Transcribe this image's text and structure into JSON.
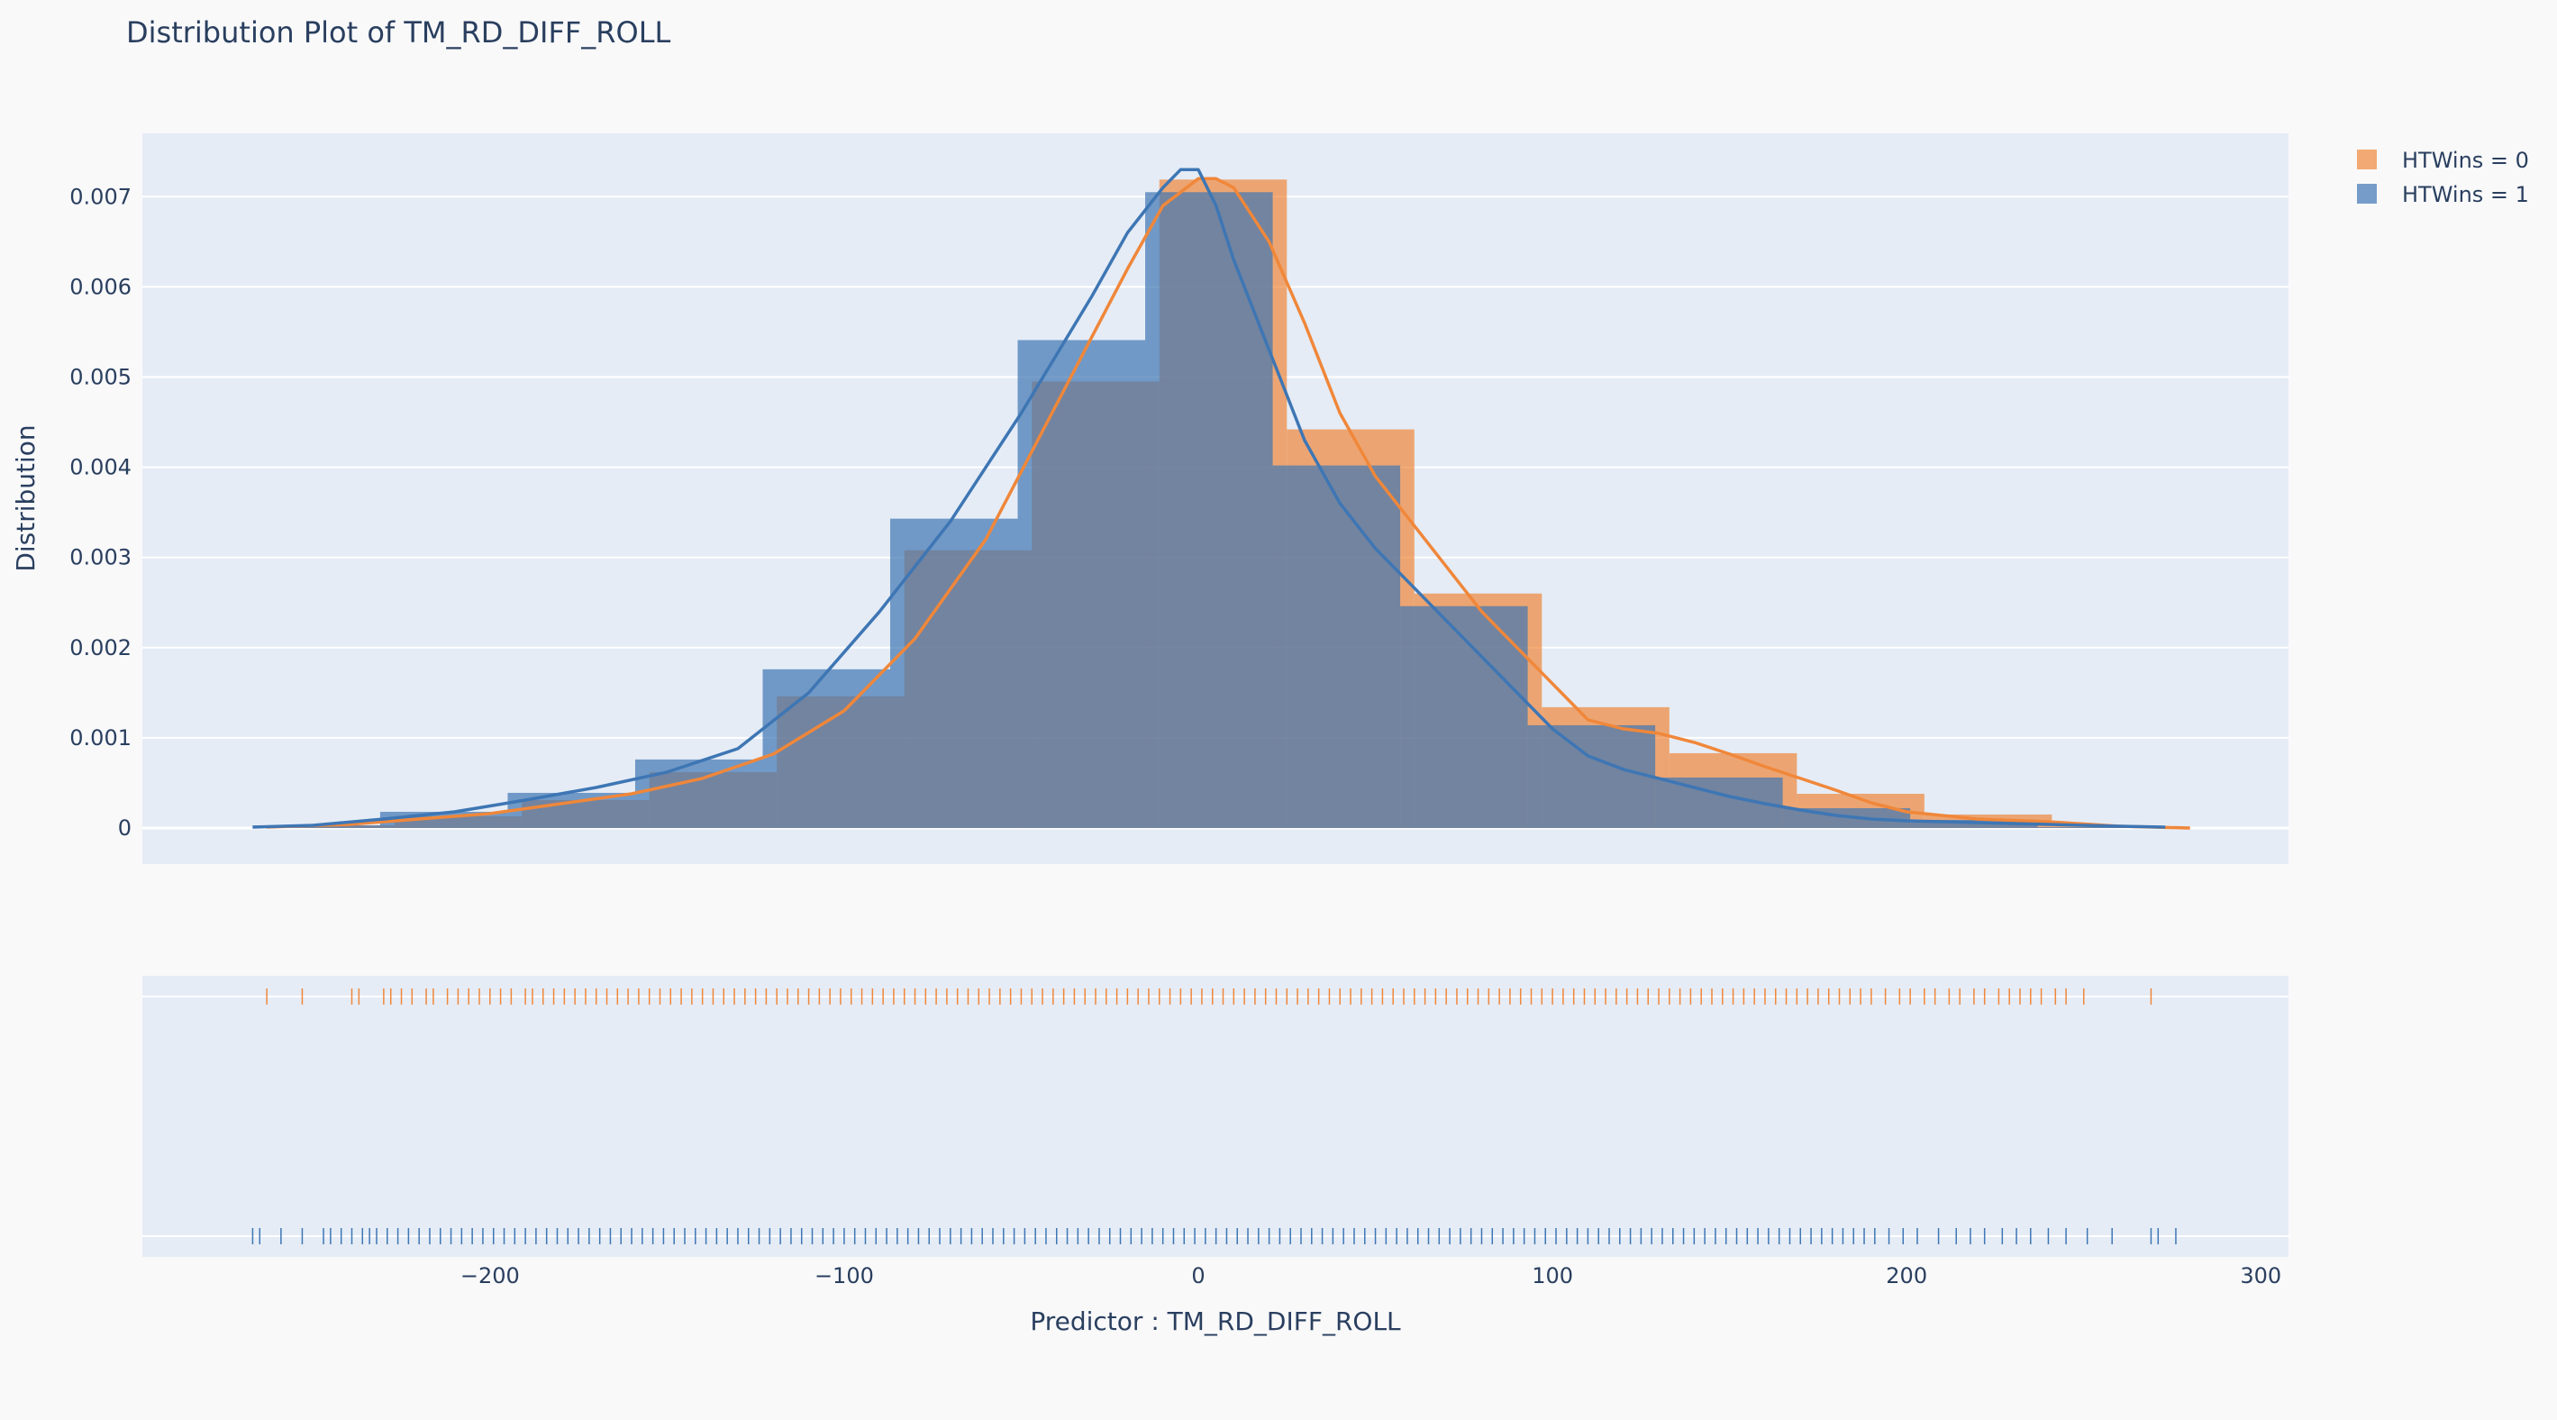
{
  "chart_data": {
    "type": "histogram",
    "title": "Distribution Plot of TM_RD_DIFF_ROLL",
    "xlabel": "Predictor : TM_RD_DIFF_ROLL",
    "ylabel": "Distribution",
    "xlim": [
      -267,
      300
    ],
    "ylim": [
      0,
      0.0075
    ],
    "x_ticks": [
      -200,
      -100,
      0,
      100,
      200,
      300
    ],
    "x_tick_labels": [
      "−200",
      "−100",
      "0",
      "100",
      "200",
      "300"
    ],
    "y_ticks": [
      0,
      0.001,
      0.002,
      0.003,
      0.004,
      0.005,
      0.006,
      0.007
    ],
    "y_tick_labels": [
      "0",
      "0.001",
      "0.002",
      "0.003",
      "0.004",
      "0.005",
      "0.006",
      "0.007"
    ],
    "legend_position": "top-right",
    "series": [
      {
        "name": "HTWins = 0",
        "color": "#f0873a",
        "bin_edges": [
          -263,
          -227,
          -191,
          -155,
          -119,
          -83,
          -47,
          -11,
          25,
          61,
          97,
          133,
          169,
          205,
          241,
          277
        ],
        "densities": [
          3e-05,
          0.00013,
          0.00031,
          0.00062,
          0.00146,
          0.00308,
          0.00495,
          0.00719,
          0.00442,
          0.0026,
          0.00134,
          0.00083,
          0.00038,
          0.00015,
          2e-05
        ],
        "kde_x": [
          -263,
          -240,
          -220,
          -200,
          -180,
          -160,
          -140,
          -120,
          -100,
          -80,
          -60,
          -40,
          -20,
          -10,
          0,
          5,
          10,
          20,
          30,
          40,
          50,
          60,
          70,
          80,
          90,
          100,
          110,
          120,
          130,
          140,
          150,
          160,
          170,
          180,
          190,
          200,
          220,
          240,
          260,
          280
        ],
        "kde_y": [
          1e-05,
          4e-05,
          0.0001,
          0.00016,
          0.00027,
          0.00038,
          0.00055,
          0.00082,
          0.0013,
          0.0021,
          0.0032,
          0.0047,
          0.0062,
          0.0069,
          0.0072,
          0.0072,
          0.0071,
          0.0065,
          0.0056,
          0.0046,
          0.0039,
          0.0034,
          0.0029,
          0.0024,
          0.002,
          0.0016,
          0.0012,
          0.0011,
          0.00105,
          0.00095,
          0.00082,
          0.00068,
          0.00055,
          0.00042,
          0.00028,
          0.00018,
          0.0001,
          7e-05,
          2e-05,
          0.0
        ],
        "rug_x": [
          -263,
          -253,
          -239,
          -237,
          -230,
          -228,
          -225,
          -222,
          -218,
          -216,
          -212,
          -209,
          -206,
          -203,
          -200,
          -197,
          -194,
          -190,
          -188,
          -185,
          -182,
          -179,
          -176,
          -173,
          -170,
          -167,
          -164,
          -161,
          -158,
          -155,
          -152,
          -149,
          -146,
          -143,
          -140,
          -137,
          -134,
          -131,
          -128,
          -125,
          -122,
          -119,
          -116,
          -113,
          -110,
          -107,
          -104,
          -101,
          -98,
          -95,
          -92,
          -89,
          -86,
          -83,
          -80,
          -77,
          -74,
          -71,
          -68,
          -65,
          -62,
          -59,
          -56,
          -53,
          -50,
          -47,
          -44,
          -41,
          -38,
          -35,
          -32,
          -29,
          -26,
          -23,
          -20,
          -17,
          -14,
          -11,
          -8,
          -5,
          -2,
          1,
          4,
          7,
          10,
          13,
          16,
          19,
          22,
          25,
          28,
          31,
          34,
          37,
          40,
          43,
          46,
          49,
          52,
          55,
          58,
          61,
          64,
          67,
          70,
          73,
          76,
          79,
          82,
          85,
          88,
          91,
          94,
          97,
          100,
          103,
          106,
          109,
          112,
          115,
          118,
          121,
          124,
          127,
          130,
          133,
          136,
          139,
          142,
          145,
          148,
          151,
          154,
          157,
          160,
          163,
          166,
          169,
          172,
          175,
          178,
          181,
          184,
          187,
          190,
          194,
          198,
          201,
          205,
          208,
          212,
          215,
          219,
          222,
          226,
          229,
          232,
          235,
          238,
          242,
          245,
          250,
          269
        ]
      },
      {
        "name": "HTWins = 1",
        "color": "#3e76b4",
        "bin_edges": [
          -267,
          -231,
          -195,
          -159,
          -123,
          -87,
          -51,
          -15,
          21,
          57,
          93,
          129,
          165,
          201,
          237,
          273
        ],
        "densities": [
          3e-05,
          0.00018,
          0.00039,
          0.00076,
          0.00176,
          0.00343,
          0.00541,
          0.00705,
          0.00402,
          0.00246,
          0.00114,
          0.00056,
          0.00022,
          9e-05,
          1e-05
        ],
        "kde_x": [
          -267,
          -250,
          -230,
          -210,
          -190,
          -170,
          -150,
          -130,
          -110,
          -90,
          -70,
          -50,
          -30,
          -20,
          -10,
          -5,
          0,
          5,
          10,
          20,
          30,
          40,
          50,
          60,
          70,
          80,
          90,
          100,
          110,
          120,
          130,
          140,
          150,
          160,
          170,
          180,
          190,
          200,
          220,
          240,
          260,
          273
        ],
        "kde_y": [
          1e-05,
          3e-05,
          0.0001,
          0.00018,
          0.00031,
          0.00045,
          0.00062,
          0.00088,
          0.0015,
          0.0024,
          0.0034,
          0.0046,
          0.0059,
          0.0066,
          0.0071,
          0.0073,
          0.0073,
          0.0069,
          0.0063,
          0.0053,
          0.0043,
          0.0036,
          0.0031,
          0.0027,
          0.0023,
          0.0019,
          0.0015,
          0.0011,
          0.0008,
          0.00065,
          0.00055,
          0.00045,
          0.00035,
          0.00027,
          0.0002,
          0.00014,
          0.0001,
          8e-05,
          6e-05,
          4e-05,
          2e-05,
          1e-05
        ],
        "rug_x": [
          -267,
          -265,
          -259,
          -253,
          -247,
          -245,
          -242,
          -239,
          -236,
          -234,
          -232,
          -229,
          -226,
          -223,
          -220,
          -217,
          -214,
          -211,
          -208,
          -205,
          -202,
          -199,
          -196,
          -193,
          -190,
          -187,
          -184,
          -181,
          -178,
          -175,
          -172,
          -169,
          -166,
          -163,
          -160,
          -157,
          -154,
          -151,
          -148,
          -145,
          -142,
          -139,
          -136,
          -133,
          -130,
          -127,
          -124,
          -121,
          -118,
          -115,
          -112,
          -109,
          -106,
          -103,
          -100,
          -97,
          -94,
          -91,
          -88,
          -85,
          -82,
          -79,
          -76,
          -73,
          -70,
          -67,
          -64,
          -61,
          -58,
          -55,
          -52,
          -49,
          -46,
          -43,
          -40,
          -37,
          -34,
          -31,
          -28,
          -25,
          -22,
          -19,
          -16,
          -13,
          -10,
          -7,
          -4,
          -1,
          2,
          5,
          8,
          11,
          14,
          17,
          20,
          23,
          26,
          29,
          32,
          35,
          38,
          41,
          44,
          47,
          50,
          53,
          56,
          59,
          62,
          65,
          68,
          71,
          74,
          77,
          80,
          83,
          86,
          89,
          92,
          95,
          98,
          101,
          104,
          107,
          110,
          113,
          116,
          119,
          122,
          125,
          128,
          131,
          134,
          137,
          140,
          143,
          146,
          149,
          152,
          155,
          158,
          161,
          164,
          167,
          170,
          173,
          176,
          179,
          182,
          185,
          188,
          191,
          195,
          199,
          203,
          209,
          214,
          218,
          222,
          227,
          231,
          235,
          240,
          245,
          251,
          258,
          269,
          271,
          276
        ]
      }
    ]
  }
}
